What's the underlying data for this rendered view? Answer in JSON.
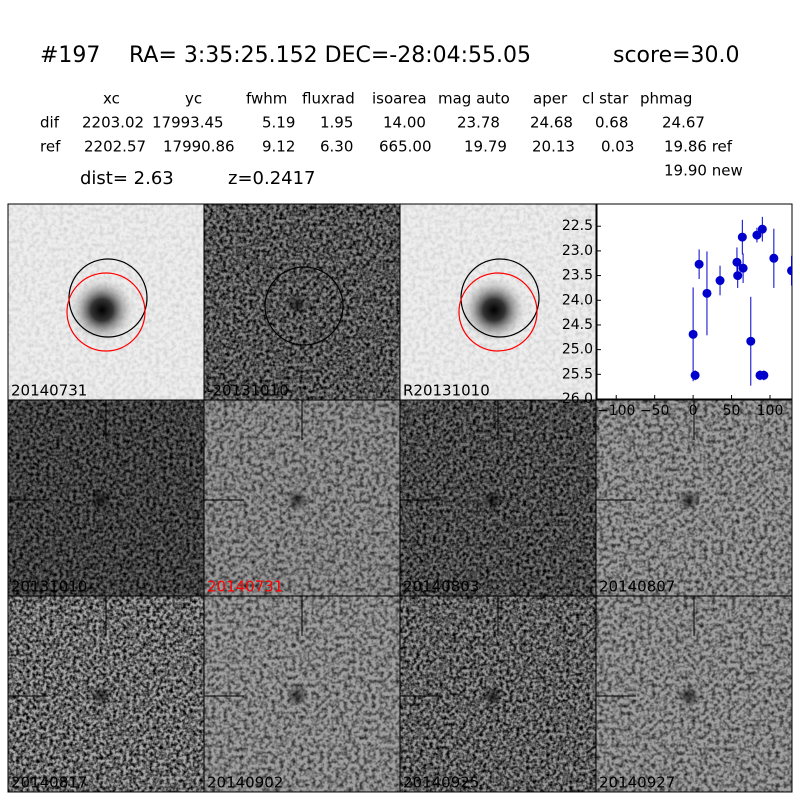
{
  "header": {
    "id": "#197",
    "coords": "RA= 3:35:25.152 DEC=-28:04:55.05",
    "score": "score=30.0"
  },
  "table": {
    "columns": [
      "xc",
      "yc",
      "fwhm",
      "fluxrad",
      "isoarea",
      "mag auto",
      "aper",
      "cl star",
      "phmag"
    ],
    "rows": [
      [
        "dif",
        "2203.02",
        "17993.45",
        "5.19",
        "1.95",
        "14.00",
        "23.78",
        "24.68",
        "0.68",
        "24.67"
      ],
      [
        "ref",
        "2202.57",
        "17990.86",
        "9.12",
        "6.30",
        "665.00",
        "19.79",
        "20.13",
        "0.03",
        "19.86 ref"
      ]
    ],
    "extra": "19.90 new"
  },
  "dist": "dist=  2.63",
  "z": "z=0.2417",
  "panels": [
    "20140731",
    "-20131010",
    "R20131010",
    "20131010",
    "20140731",
    "20140803",
    "20140807",
    "20140817",
    "20140902",
    "20140925",
    "20140927"
  ],
  "chart_data": {
    "type": "scatter",
    "color": "#0000cc",
    "x": [
      0,
      2.6,
      7.8,
      18,
      35,
      57,
      58,
      64,
      65,
      75,
      83,
      87,
      90,
      92,
      105,
      128
    ],
    "values": [
      24.69,
      25.52,
      23.27,
      23.86,
      23.6,
      23.23,
      23.5,
      22.72,
      23.35,
      24.83,
      22.68,
      25.52,
      22.56,
      25.52,
      23.15,
      23.4
    ],
    "errors": [
      0.95,
      0.1,
      0.3,
      0.85,
      0.3,
      0.3,
      0.25,
      0.35,
      0.3,
      0.9,
      0.15,
      0.1,
      0.25,
      0.1,
      0.6,
      0.3
    ],
    "xlim": [
      -125,
      128.6
    ],
    "ylim": [
      26.0,
      22.05
    ],
    "xticks": [
      {
        "value": -100,
        "label": "−100"
      },
      {
        "value": -50,
        "label": "−50"
      },
      0,
      50,
      100
    ],
    "yticks": [
      22.5,
      {
        "value": 23,
        "label": "23.0"
      },
      23.5,
      {
        "value": 24,
        "label": "24.0"
      },
      24.5,
      {
        "value": 25,
        "label": "25.0"
      },
      25.5,
      {
        "value": 26,
        "label": "26.0"
      }
    ]
  }
}
